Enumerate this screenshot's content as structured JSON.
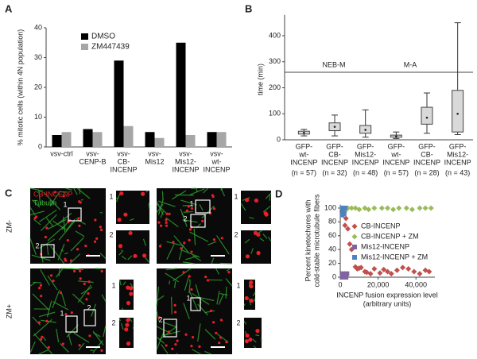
{
  "chart_data": [
    {
      "type": "bar",
      "panel": "A",
      "ylabel": "% mitotic cells (within 4N population)",
      "categories": [
        [
          "vsv-ctrl"
        ],
        [
          "vsv-",
          "CENP-B"
        ],
        [
          "vsv-",
          "CB-",
          "INCENP"
        ],
        [
          "vsv-",
          "Mis12"
        ],
        [
          "vsv-",
          "Mis12-",
          "INCENP"
        ],
        [
          "vsv-",
          "wt-",
          "INCENP"
        ]
      ],
      "series": [
        {
          "name": "DMSO",
          "color": "#000000",
          "values": [
            4,
            6,
            29,
            5,
            35,
            5
          ]
        },
        {
          "name": "ZM447439",
          "color": "#a6a6a6",
          "values": [
            5,
            5,
            7,
            3,
            4,
            5
          ]
        }
      ],
      "ylim": [
        0,
        40
      ],
      "yticks": [
        0,
        10,
        20,
        30,
        40
      ],
      "grid": false
    },
    {
      "type": "box",
      "panel": "B",
      "ylabel": "time (min)",
      "annotations": [
        "NEB-M",
        "M-A"
      ],
      "categories": [
        [
          "GFP-",
          "wt-",
          "INCENP"
        ],
        [
          "GFP-",
          "CB-",
          "INCENP"
        ],
        [
          "GFP-",
          "Mis12-",
          "INCENP"
        ],
        [
          "GFP-",
          "wt-",
          "INCENP"
        ],
        [
          "GFP-",
          "CB-",
          "INCENP"
        ],
        [
          "GFP-",
          "Mis12-",
          "INCENP"
        ]
      ],
      "n_labels": [
        "(n = 57)",
        "(n = 32)",
        "(n = 48)",
        "(n = 57)",
        "(n = 28)",
        "(n = 43)"
      ],
      "color": "#d9d9d9",
      "boxes": [
        {
          "min": 15,
          "q1": 22,
          "median": 27,
          "q3": 33,
          "max": 40
        },
        {
          "min": 15,
          "q1": 35,
          "median": 50,
          "q3": 65,
          "max": 95
        },
        {
          "min": 10,
          "q1": 25,
          "median": 38,
          "q3": 55,
          "max": 115
        },
        {
          "min": 5,
          "q1": 10,
          "median": 13,
          "q3": 18,
          "max": 30
        },
        {
          "min": 25,
          "q1": 60,
          "median": 85,
          "q3": 125,
          "max": 180
        },
        {
          "min": 20,
          "q1": 30,
          "median": 100,
          "q3": 190,
          "max": 450
        }
      ],
      "ylim": [
        0,
        480
      ],
      "yticks": [
        0,
        100,
        200,
        300,
        400
      ]
    },
    {
      "type": "scatter",
      "panel": "D",
      "ylabel": [
        "Percent kinetochores with",
        "cold-stable microtubule fibers"
      ],
      "xlabel": [
        "INCENP fusion expression level",
        "(arbitrary units)"
      ],
      "series": [
        {
          "name": "CB-INCENP",
          "color": "#c0504d",
          "marker": "diamond",
          "x": [
            1500,
            2500,
            3000,
            4000,
            5000,
            6000,
            8000,
            9000,
            10000,
            11000,
            13000,
            14000,
            16000,
            18000,
            21000,
            23000,
            25000,
            27000,
            30000,
            33000,
            36000,
            39000,
            42000,
            45000,
            47000
          ],
          "values": [
            90,
            75,
            85,
            70,
            48,
            40,
            15,
            12,
            13,
            14,
            8,
            7,
            5,
            12,
            6,
            11,
            8,
            5,
            10,
            14,
            12,
            8,
            5,
            10,
            8
          ]
        },
        {
          "name": "CB-INCENP + ZM",
          "color": "#9bbb59",
          "marker": "diamond",
          "x": [
            1000,
            2500,
            4000,
            6000,
            8000,
            10000,
            13000,
            15000,
            18000,
            22000,
            25000,
            28000,
            31000,
            35000,
            38000,
            42000,
            45000,
            48000
          ],
          "values": [
            100,
            95,
            100,
            100,
            100,
            98,
            100,
            98,
            100,
            100,
            100,
            98,
            100,
            100,
            98,
            100,
            100,
            100
          ]
        },
        {
          "name": "Mis12-INCENP",
          "color": "#8064a2",
          "marker": "square",
          "x": [
            1000,
            1200,
            1500,
            2000,
            2500,
            3000,
            3500
          ],
          "values": [
            0,
            3,
            5,
            0,
            2,
            0,
            5
          ]
        },
        {
          "name": "Mis12-INCENP + ZM",
          "color": "#4f81bd",
          "marker": "square",
          "x": [
            1000,
            1000,
            1500,
            2000,
            2500
          ],
          "values": [
            100,
            90,
            95,
            92,
            100
          ]
        }
      ],
      "xlim": [
        0,
        50000
      ],
      "xticks": [
        0,
        {
          "value": 20000,
          "label": "20,000"
        },
        {
          "value": 40000,
          "label": "40,000"
        }
      ],
      "ylim": [
        0,
        105
      ],
      "yticks": [
        0,
        20,
        40,
        60,
        80,
        100
      ]
    }
  ],
  "panel_c": {
    "panel": "C",
    "labels": [
      "CB-INCENP",
      "Tubulin"
    ],
    "rows": [
      "ZM-",
      "ZM+"
    ],
    "roi": [
      "1",
      "2"
    ]
  }
}
